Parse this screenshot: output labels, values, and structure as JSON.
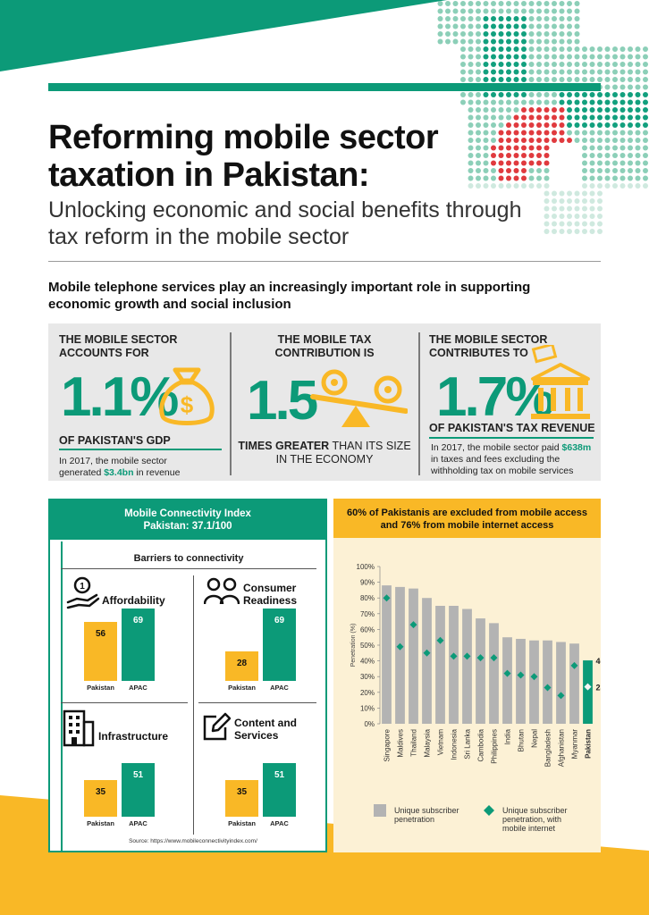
{
  "header": {
    "title_line1": "Reforming mobile sector",
    "title_line2": "taxation in Pakistan:",
    "subtitle_line1": "Unlocking economic and social benefits through",
    "subtitle_line2": "tax reform in the mobile sector",
    "intro_line1": "Mobile telephone services play an increasingly important role in supporting",
    "intro_line2": "economic growth and social inclusion"
  },
  "stats": [
    {
      "head_line1": "THE MOBILE SECTOR",
      "head_line2": "ACCOUNTS FOR",
      "value": "1.1%",
      "caption": "OF PAKISTAN'S GDP",
      "note_line1": "In 2017, the mobile sector",
      "note_line2_pre": "generated ",
      "note_highlight": "$3.4bn",
      "note_line2_post": " in revenue",
      "icon": "money-bag-icon"
    },
    {
      "head_line1": "THE MOBILE TAX",
      "head_line2": "CONTRIBUTION IS",
      "value": "1.5",
      "caption_bold": "TIMES GREATER",
      "caption_rest": " THAN ITS SIZE",
      "caption_line2": "IN THE ECONOMY",
      "icon": "seesaw-icon"
    },
    {
      "head_line1": "THE MOBILE SECTOR",
      "head_line2": "CONTRIBUTES TO",
      "value": "1.7%",
      "caption": "OF PAKISTAN'S TAX REVENUE",
      "note_line1_pre": "In 2017, the mobile sector paid ",
      "note_highlight": "$638m",
      "note_line2": "in taxes and fees excluding the",
      "note_line3": "withholding tax on mobile services",
      "icon": "bank-icon"
    }
  ],
  "connectivity": {
    "title_line1": "Mobile Connectivity Index",
    "title_line2": "Pakistan: 37.1/100",
    "barriers_title": "Barriers to connectivity",
    "source": "Source: https://www.mobileconnectivityindex.com/",
    "categories": [
      {
        "title_line1": "Affordability",
        "title_line2": "",
        "pakistan": 56,
        "apac": 69,
        "icon": "hand-coin-icon"
      },
      {
        "title_line1": "Consumer",
        "title_line2": "Readiness",
        "pakistan": 28,
        "apac": 69,
        "icon": "people-icon"
      },
      {
        "title_line1": "Infrastructure",
        "title_line2": "",
        "pakistan": 35,
        "apac": 51,
        "icon": "building-icon"
      },
      {
        "title_line1": "Content and",
        "title_line2": "Services",
        "pakistan": 35,
        "apac": 51,
        "icon": "pencil-square-icon"
      }
    ],
    "label_pakistan": "Pakistan",
    "label_apac": "APAC"
  },
  "chart_header": {
    "line1": "60% of Pakistanis are excluded from mobile access",
    "line2": "and 76% from mobile internet access"
  },
  "chart_data": {
    "type": "bar",
    "ylabel": "Penetration (%)",
    "ylim": [
      0,
      100
    ],
    "yticks": [
      "0%",
      "10%",
      "20%",
      "30%",
      "40%",
      "50%",
      "60%",
      "70%",
      "80%",
      "90%",
      "100%"
    ],
    "categories": [
      "Singapore",
      "Maldives",
      "Thailand",
      "Malaysia",
      "Vietnam",
      "Indonesia",
      "Sri Lanka",
      "Cambodia",
      "Philippines",
      "India",
      "Bhutan",
      "Nepal",
      "Bangladesh",
      "Afghanistan",
      "Myanmar",
      "Pakistan"
    ],
    "series": [
      {
        "name": "Unique subscriber penetration",
        "values": [
          88,
          87,
          86,
          80,
          75,
          75,
          73,
          67,
          64,
          55,
          54,
          53,
          53,
          52,
          51,
          40.3
        ]
      },
      {
        "name": "Unique subscriber penetration, with mobile internet",
        "values": [
          80,
          49,
          63,
          45,
          53,
          43,
          43,
          42,
          42,
          32,
          31,
          30,
          23,
          18,
          37,
          23.5
        ]
      }
    ],
    "highlight": "Pakistan",
    "data_labels": {
      "bar": "40.3%",
      "dot": "23.5%"
    },
    "legend": [
      {
        "line1": "Unique subscriber",
        "line2": "penetration",
        "line3": ""
      },
      {
        "line1": "Unique subscriber",
        "line2": "penetration, with",
        "line3": "mobile internet"
      }
    ],
    "colors": {
      "bar": "#b3b3b3",
      "bar_highlight": "#0c9a78",
      "dot": "#0c9a78"
    }
  },
  "colors": {
    "green": "#0c9a78",
    "yellow": "#f9b826",
    "red": "#e03a3e"
  }
}
